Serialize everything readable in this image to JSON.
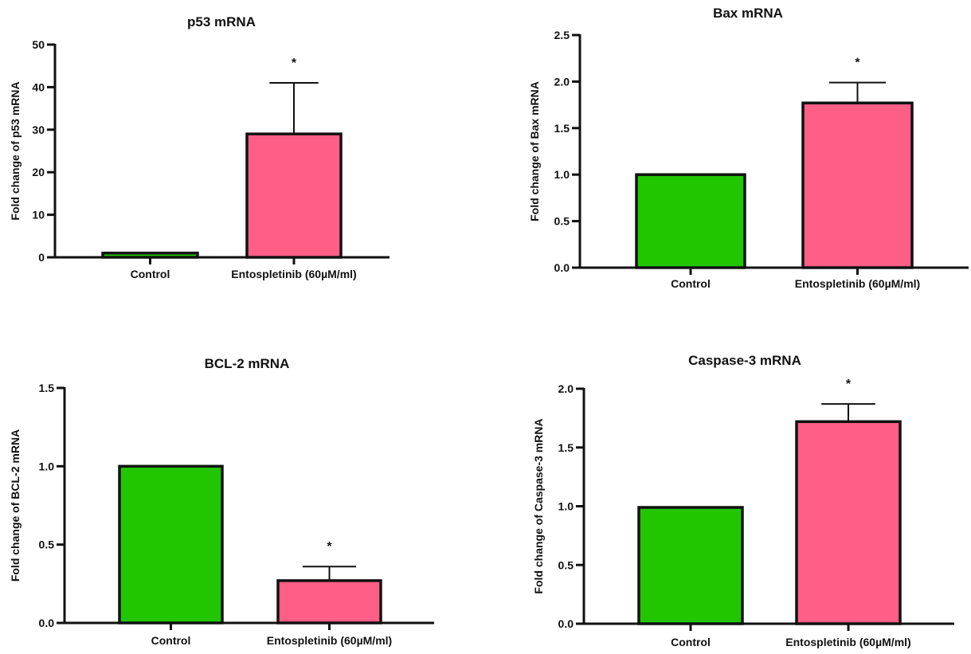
{
  "colors": {
    "control": "#22c600",
    "treatment": "#ff5e87",
    "axis": "#111111"
  },
  "chart_data": [
    {
      "type": "bar",
      "title": "p53 mRNA",
      "xlabel": "",
      "ylabel": "Fold change of p53 mRNA",
      "categories": [
        "Control",
        "Entospletinib (60µM/ml)"
      ],
      "values": [
        1.0,
        29.0
      ],
      "error_upper": [
        null,
        41.0
      ],
      "significance": [
        "",
        "*"
      ],
      "ylim": [
        0,
        50
      ],
      "yticks": [
        0,
        10,
        20,
        30,
        40,
        50
      ],
      "ytick_labels": [
        "0",
        "10",
        "20",
        "30",
        "40",
        "50"
      ],
      "grid": false,
      "legend": "none"
    },
    {
      "type": "bar",
      "title": "Bax mRNA",
      "xlabel": "",
      "ylabel": "Fold change of Bax mRNA",
      "categories": [
        "Control",
        "Entospletinib (60µM/ml)"
      ],
      "values": [
        1.0,
        1.77
      ],
      "error_upper": [
        null,
        1.99
      ],
      "significance": [
        "",
        "*"
      ],
      "ylim": [
        0,
        2.5
      ],
      "yticks": [
        0,
        0.5,
        1.0,
        1.5,
        2.0,
        2.5
      ],
      "ytick_labels": [
        "0.0",
        "0.5",
        "1.0",
        "1.5",
        "2.0",
        "2.5"
      ],
      "grid": false,
      "legend": "none"
    },
    {
      "type": "bar",
      "title": "BCL-2 mRNA",
      "xlabel": "",
      "ylabel": "Fold change of BCL-2 mRNA",
      "categories": [
        "Control",
        "Entospletinib (60µM/ml)"
      ],
      "values": [
        1.0,
        0.27
      ],
      "error_upper": [
        null,
        0.36
      ],
      "significance": [
        "",
        "*"
      ],
      "ylim": [
        0,
        1.5
      ],
      "yticks": [
        0,
        0.5,
        1.0,
        1.5
      ],
      "ytick_labels": [
        "0.0",
        "0.5",
        "1.0",
        "1.5"
      ],
      "grid": false,
      "legend": "none"
    },
    {
      "type": "bar",
      "title": "Caspase-3 mRNA",
      "xlabel": "",
      "ylabel": "Fold change of Caspase-3 mRNA",
      "categories": [
        "Control",
        "Entospletinib (60µM/ml)"
      ],
      "values": [
        0.99,
        1.72
      ],
      "error_upper": [
        null,
        1.87
      ],
      "significance": [
        "",
        "*"
      ],
      "ylim": [
        0,
        2.0
      ],
      "yticks": [
        0,
        0.5,
        1.0,
        1.5,
        2.0
      ],
      "ytick_labels": [
        "0.0",
        "0.5",
        "1.0",
        "1.5",
        "2.0"
      ],
      "grid": false,
      "legend": "none"
    }
  ]
}
